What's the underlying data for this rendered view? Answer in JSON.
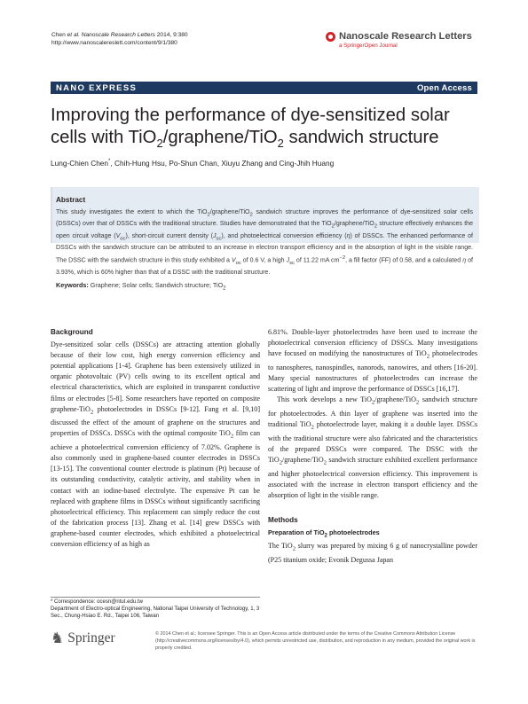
{
  "header": {
    "citation_authors": "Chen ",
    "citation_etal": "et al. Nanoscale Research Letters",
    "citation_rest": " 2014, 9:380",
    "url": "http://www.nanoscalereslett.com/content/9/1/380",
    "journal_name": "Nanoscale Research Letters",
    "journal_sub": "a SpringerOpen Journal",
    "logo_icon": "journal-logo-icon",
    "accent_color": "#d2232a"
  },
  "banner": {
    "left": "NANO EXPRESS",
    "right": "Open Access",
    "color": "#1f3a60"
  },
  "title": {
    "line1": "Improving the performance of dye-sensitized solar",
    "line2a": "cells with TiO",
    "line2b": "/graphene/TiO",
    "line2c": " sandwich structure",
    "sub": "2"
  },
  "authors": {
    "first": "Lung-Chien Chen",
    "mark": "*",
    "rest": ", Chih-Hung Hsu, Po-Shun Chan, Xiuyu Zhang and Cing-Jhih Huang"
  },
  "abstract": {
    "heading": "Abstract",
    "t1": "This study investigates the extent to which the TiO",
    "t2": "/graphene/TiO",
    "t3": " sandwich structure improves the performance of dye-sensitized solar cells (DSSCs) over that of DSSCs with the traditional structure. Studies have demonstrated that the TiO",
    "t4": "/graphene/TiO",
    "t5": " structure effectively enhances the open circuit voltage (",
    "voc": "V",
    "voc_sub": "oc",
    "t6": "), short-circuit current density (",
    "jsc": "J",
    "jsc_sub": "sc",
    "t7": "), and photoelectrical conversion efficiency (",
    "eta": "η",
    "t8": ") of DSSCs. The enhanced performance of DSSCs with the sandwich structure can be attributed to an increase in electron transport efficiency and in the absorption of light in the visible range. The DSSC with the sandwich structure in this study exhibited a ",
    "t9": " of 0.6 V, a high ",
    "t10": " of 11.22 mA cm",
    "sup": "−2",
    "t11": ", a fill factor (FF) of 0.58, and a calculated ",
    "t12": " of 3.93%, which is 60% higher than that of a DSSC with the traditional structure.",
    "sub2": "2",
    "keywords_label": "Keywords:",
    "keywords_text": " Graphene; Solar cells; Sandwich structure; TiO"
  },
  "left_column": {
    "heading": "Background",
    "p1a": "Dye-sensitized solar cells (DSSCs) are attracting attention globally because of their low cost, high energy conversion efficiency and potential applications [1-4]. Graphene has been extensively utilized in organic photovoltaic (PV) cells owing to its excellent optical and electrical characteristics, which are exploited in transparent conductive films or electrodes [5-8]. Some researchers have reported on composite graphene-TiO",
    "p1b": " photoelectrodes in DSSCs [9-12]. Fang et al. [9,10] discussed the effect of the amount of graphene on the structures and properties of DSSCs. DSSCs with the optimal composite TiO",
    "p1c": " film can achieve a photoelectrical conversion efficiency of 7.02%. Graphene is also commonly used in graphene-based counter electrodes in DSSCs [13-15]. The conventional counter electrode is platinum (Pt) because of its outstanding conductivity, catalytic activity, and stability when in contact with an iodine-based electrolyte. The expensive Pt can be replaced with graphene films in DSSCs without significantly sacrificing photoelectrical efficiency. This replacement can simply reduce the cost of the fabrication process [13]. Zhang et al. [14] grew DSSCs with graphene-based counter electrodes, which exhibited a photoelectrical conversion efficiency of as high as",
    "sub": "2"
  },
  "right_column": {
    "p1a": "6.81%. Double-layer photoelectrodes have been used to increase the photoelectrical conversion efficiency of DSSCs. Many investigations have focused on modifying the nanostructures of TiO",
    "p1b": " photoelectrodes to nanospheres, nanospindles, nanorods, nanowires, and others [16-20]. Many special nanostructures of photoelectrodes can increase the scattering of light and improve the performance of DSSCs [16,17].",
    "p2a": "This work develops a new TiO",
    "p2b": "/graphene/TiO",
    "p2c": " sandwich structure for photoelectrodes. A thin layer of graphene was inserted into the traditional TiO",
    "p2d": " photoelectrode layer, making it a double layer. DSSCs with the traditional structure were also fabricated and the characteristics of the prepared DSSCs were compared. The DSSC with the TiO",
    "p2e": "/graphene/TiO",
    "p2f": " sandwich structure exhibited excellent performance and higher photoelectrical conversion efficiency. This improvement is associated with the increase in electron transport efficiency and the absorption of light in the visible range.",
    "methods_heading": "Methods",
    "sub_heading_a": "Preparation of TiO",
    "sub_heading_b": " photoelectrodes",
    "p3a": "The TiO",
    "p3b": " slurry was prepared by mixing 6 g of nanocrystalline powder (P25 titanium oxide; Evonik Degussa Japan",
    "sub": "2"
  },
  "footnote": {
    "line1": "* Correspondence: ocesn@ntut.edu.tw",
    "line2": "Department of Electro-optical Engineering, National Taipei University of Technology, 1, 3 Sec., Chung-Hsiao E. Rd., Taipei 106, Taiwan"
  },
  "footer": {
    "publisher": "Springer",
    "publisher_icon": "springer-horse-icon",
    "license": "© 2014 Chen et al.; licensee Springer. This is an Open Access article distributed under the terms of the Creative Commons Attribution License (http://creativecommons.org/licenses/by/4.0), which permits unrestricted use, distribution, and reproduction in any medium, provided the original work is properly credited."
  }
}
